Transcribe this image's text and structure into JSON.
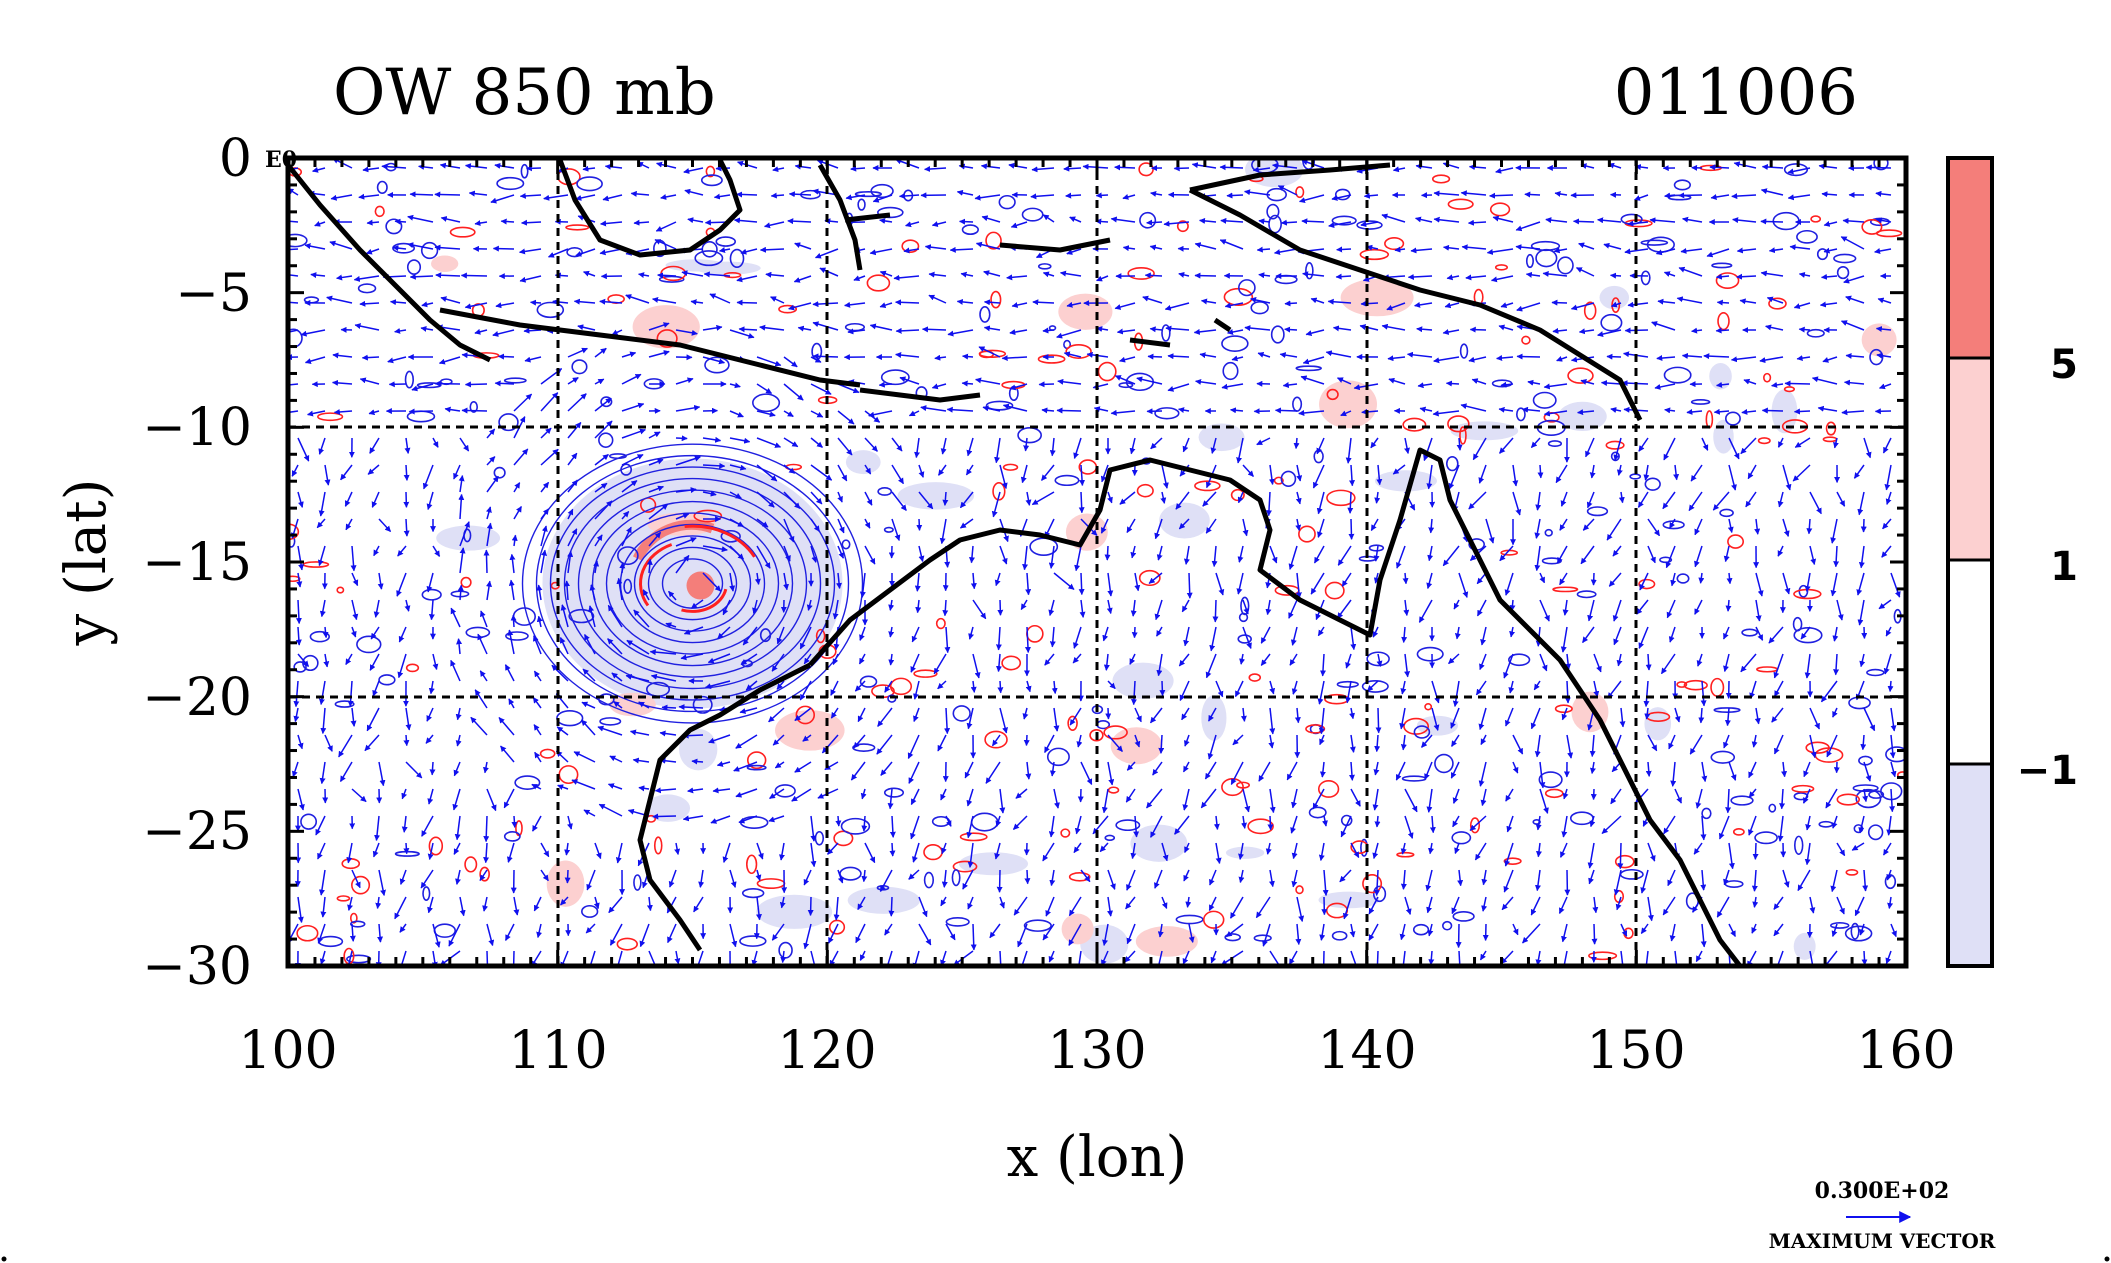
{
  "chart_data": {
    "type": "vector-contour-map",
    "title_left": "OW 850 mb",
    "title_right": "011006",
    "xlabel": "x (lon)",
    "ylabel": "y (lat)",
    "xlim": [
      100,
      160
    ],
    "ylim": [
      -30,
      0
    ],
    "x_ticks": [
      "100",
      "110",
      "120",
      "130",
      "140",
      "150",
      "160"
    ],
    "y_ticks": [
      "0",
      "−5",
      "−10",
      "−15",
      "−20",
      "−25",
      "−30"
    ],
    "x_tick_values": [
      100,
      110,
      120,
      130,
      140,
      150,
      160
    ],
    "y_tick_values": [
      0,
      -5,
      -10,
      -15,
      -20,
      -25,
      -30
    ],
    "corner_label": "E0",
    "grid": true,
    "grid_x": [
      110,
      120,
      130,
      140,
      150
    ],
    "grid_y": [
      -10,
      -20
    ],
    "colorbar": {
      "levels": [
        "5",
        "1",
        "−1"
      ],
      "level_values": [
        5,
        1,
        -1
      ],
      "colors": [
        "#f47e7a",
        "#fcd0d0",
        "#ffffff",
        "#dfe0f6"
      ]
    },
    "vector_key": {
      "value_label": "0.300E+02",
      "caption": "MAXIMUM VECTOR"
    },
    "cyclone_center": [
      115,
      -15.8
    ],
    "colors": {
      "positive_contour": "#ff2020",
      "negative_contour": "#2020e0",
      "vectors": "#1010ee",
      "coast": "#000000"
    }
  }
}
